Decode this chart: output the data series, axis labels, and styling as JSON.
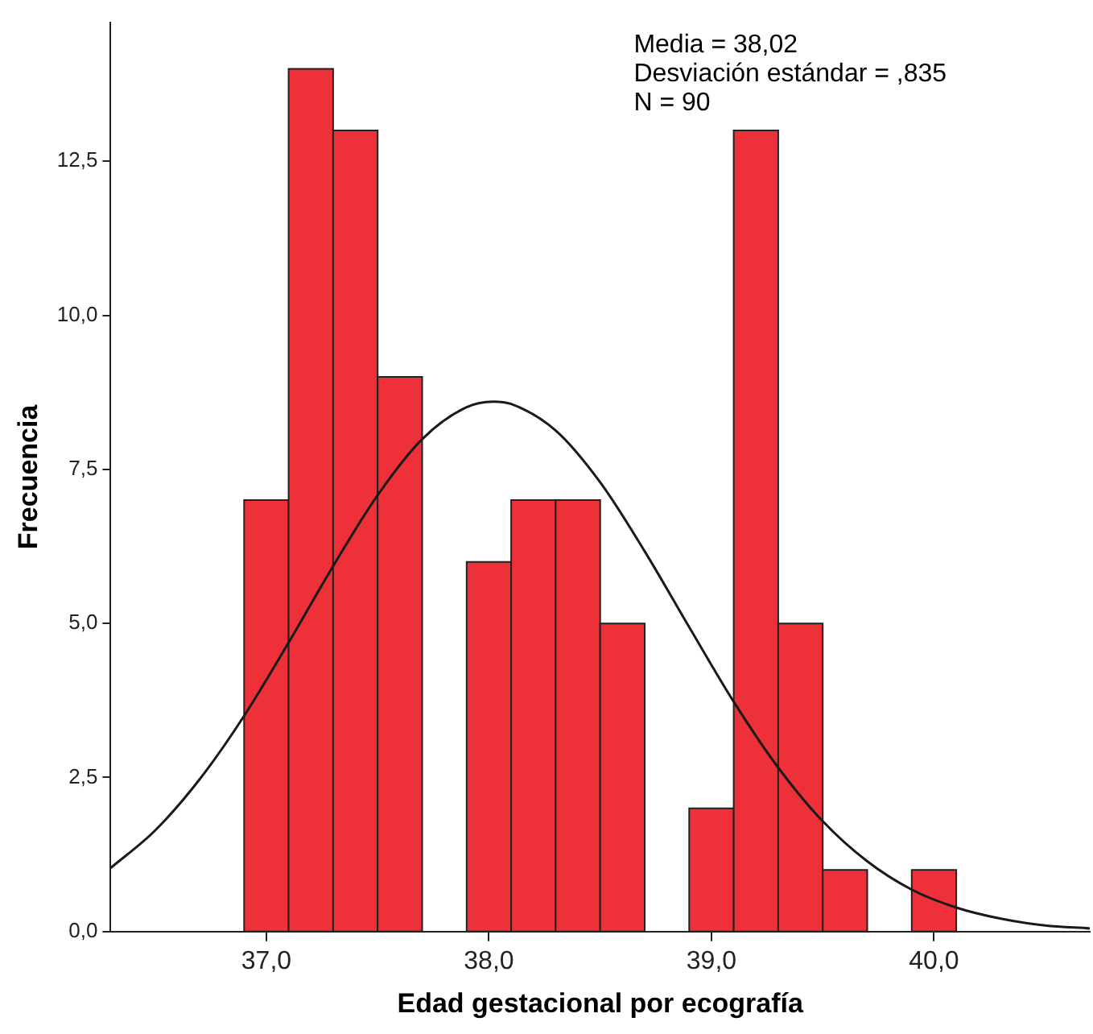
{
  "chart_data": {
    "type": "histogram",
    "xlabel": "Edad gestacional por ecografía",
    "ylabel": "Frecuencia",
    "annotations": [
      "Media = 38,02",
      "Desviación estándar = ,835",
      "N = 90"
    ],
    "series": [
      {
        "color": "#ee3139",
        "bins": [
          36.9,
          37.1,
          37.3,
          37.5,
          37.7,
          37.9,
          38.1,
          38.3,
          38.5,
          38.7,
          38.9,
          39.1,
          39.3,
          39.5,
          39.7,
          39.9,
          40.1
        ],
        "values": [
          7,
          14,
          13,
          9,
          0,
          6,
          7,
          7,
          5,
          0,
          2,
          13,
          5,
          1,
          0,
          1
        ]
      },
      {
        "type": "line",
        "color": "#1a1a1a",
        "x": [
          36.3,
          36.5,
          36.7,
          36.9,
          37.1,
          37.3,
          37.5,
          37.7,
          37.9,
          38.02,
          38.1,
          38.3,
          38.5,
          38.7,
          38.9,
          39.1,
          39.3,
          39.5,
          39.7,
          39.9,
          40.1,
          40.3,
          40.5,
          40.7
        ],
        "values": [
          1.03,
          1.64,
          2.47,
          3.5,
          4.69,
          5.93,
          7.08,
          7.99,
          8.51,
          8.6,
          8.56,
          8.13,
          7.29,
          6.17,
          4.94,
          3.73,
          2.66,
          1.79,
          1.14,
          0.68,
          0.39,
          0.21,
          0.1,
          0.05
        ]
      }
    ],
    "xlim": [
      36.3,
      40.7
    ],
    "xticks": [
      {
        "value": 37,
        "label": "37,0"
      },
      {
        "value": 38,
        "label": "38,0"
      },
      {
        "value": 39,
        "label": "39,0"
      },
      {
        "value": 40,
        "label": "40,0"
      }
    ],
    "ylim": [
      0,
      14.75
    ],
    "yticks": [
      {
        "value": 0,
        "label": "0,0"
      },
      {
        "value": 2.5,
        "label": "2,5"
      },
      {
        "value": 5,
        "label": "5,0"
      },
      {
        "value": 7.5,
        "label": "7,5"
      },
      {
        "value": 10,
        "label": "10,0"
      },
      {
        "value": 12.5,
        "label": "12,5"
      }
    ],
    "grid": false,
    "legend": false
  }
}
